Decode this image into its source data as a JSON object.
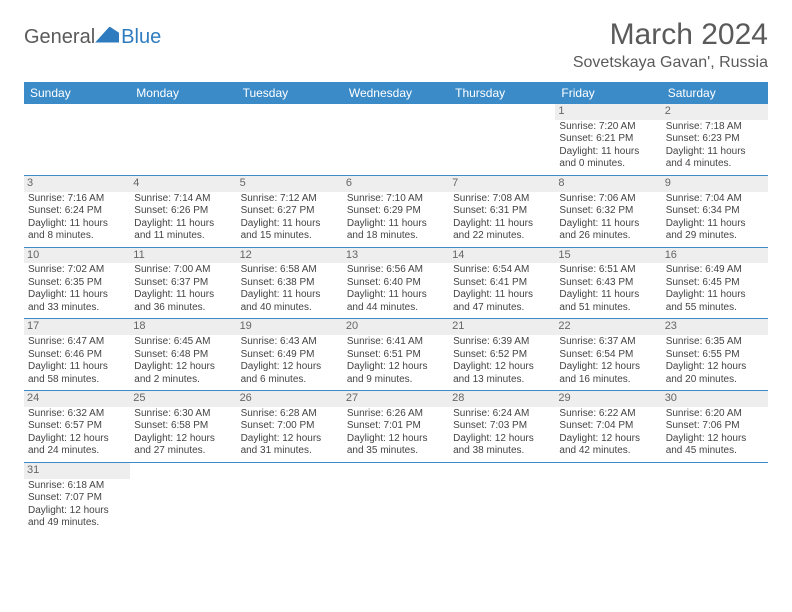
{
  "logo": {
    "text1": "General",
    "text2": "Blue"
  },
  "header": {
    "month_title": "March 2024",
    "location": "Sovetskaya Gavan', Russia"
  },
  "style": {
    "header_bg": "#3b8bc8",
    "header_fg": "#ffffff",
    "daynum_bg": "#eeeeee",
    "row_sep": "#3b8bc8",
    "text_color": "#444444",
    "cell_fontsize": 10,
    "header_fontsize": 12,
    "title_fontsize": 30,
    "location_fontsize": 16
  },
  "weekdays": [
    "Sunday",
    "Monday",
    "Tuesday",
    "Wednesday",
    "Thursday",
    "Friday",
    "Saturday"
  ],
  "weeks": [
    [
      {
        "empty": true
      },
      {
        "empty": true
      },
      {
        "empty": true
      },
      {
        "empty": true
      },
      {
        "empty": true
      },
      {
        "day": "1",
        "sunrise": "Sunrise: 7:20 AM",
        "sunset": "Sunset: 6:21 PM",
        "daylight": "Daylight: 11 hours and 0 minutes."
      },
      {
        "day": "2",
        "sunrise": "Sunrise: 7:18 AM",
        "sunset": "Sunset: 6:23 PM",
        "daylight": "Daylight: 11 hours and 4 minutes."
      }
    ],
    [
      {
        "day": "3",
        "sunrise": "Sunrise: 7:16 AM",
        "sunset": "Sunset: 6:24 PM",
        "daylight": "Daylight: 11 hours and 8 minutes."
      },
      {
        "day": "4",
        "sunrise": "Sunrise: 7:14 AM",
        "sunset": "Sunset: 6:26 PM",
        "daylight": "Daylight: 11 hours and 11 minutes."
      },
      {
        "day": "5",
        "sunrise": "Sunrise: 7:12 AM",
        "sunset": "Sunset: 6:27 PM",
        "daylight": "Daylight: 11 hours and 15 minutes."
      },
      {
        "day": "6",
        "sunrise": "Sunrise: 7:10 AM",
        "sunset": "Sunset: 6:29 PM",
        "daylight": "Daylight: 11 hours and 18 minutes."
      },
      {
        "day": "7",
        "sunrise": "Sunrise: 7:08 AM",
        "sunset": "Sunset: 6:31 PM",
        "daylight": "Daylight: 11 hours and 22 minutes."
      },
      {
        "day": "8",
        "sunrise": "Sunrise: 7:06 AM",
        "sunset": "Sunset: 6:32 PM",
        "daylight": "Daylight: 11 hours and 26 minutes."
      },
      {
        "day": "9",
        "sunrise": "Sunrise: 7:04 AM",
        "sunset": "Sunset: 6:34 PM",
        "daylight": "Daylight: 11 hours and 29 minutes."
      }
    ],
    [
      {
        "day": "10",
        "sunrise": "Sunrise: 7:02 AM",
        "sunset": "Sunset: 6:35 PM",
        "daylight": "Daylight: 11 hours and 33 minutes."
      },
      {
        "day": "11",
        "sunrise": "Sunrise: 7:00 AM",
        "sunset": "Sunset: 6:37 PM",
        "daylight": "Daylight: 11 hours and 36 minutes."
      },
      {
        "day": "12",
        "sunrise": "Sunrise: 6:58 AM",
        "sunset": "Sunset: 6:38 PM",
        "daylight": "Daylight: 11 hours and 40 minutes."
      },
      {
        "day": "13",
        "sunrise": "Sunrise: 6:56 AM",
        "sunset": "Sunset: 6:40 PM",
        "daylight": "Daylight: 11 hours and 44 minutes."
      },
      {
        "day": "14",
        "sunrise": "Sunrise: 6:54 AM",
        "sunset": "Sunset: 6:41 PM",
        "daylight": "Daylight: 11 hours and 47 minutes."
      },
      {
        "day": "15",
        "sunrise": "Sunrise: 6:51 AM",
        "sunset": "Sunset: 6:43 PM",
        "daylight": "Daylight: 11 hours and 51 minutes."
      },
      {
        "day": "16",
        "sunrise": "Sunrise: 6:49 AM",
        "sunset": "Sunset: 6:45 PM",
        "daylight": "Daylight: 11 hours and 55 minutes."
      }
    ],
    [
      {
        "day": "17",
        "sunrise": "Sunrise: 6:47 AM",
        "sunset": "Sunset: 6:46 PM",
        "daylight": "Daylight: 11 hours and 58 minutes."
      },
      {
        "day": "18",
        "sunrise": "Sunrise: 6:45 AM",
        "sunset": "Sunset: 6:48 PM",
        "daylight": "Daylight: 12 hours and 2 minutes."
      },
      {
        "day": "19",
        "sunrise": "Sunrise: 6:43 AM",
        "sunset": "Sunset: 6:49 PM",
        "daylight": "Daylight: 12 hours and 6 minutes."
      },
      {
        "day": "20",
        "sunrise": "Sunrise: 6:41 AM",
        "sunset": "Sunset: 6:51 PM",
        "daylight": "Daylight: 12 hours and 9 minutes."
      },
      {
        "day": "21",
        "sunrise": "Sunrise: 6:39 AM",
        "sunset": "Sunset: 6:52 PM",
        "daylight": "Daylight: 12 hours and 13 minutes."
      },
      {
        "day": "22",
        "sunrise": "Sunrise: 6:37 AM",
        "sunset": "Sunset: 6:54 PM",
        "daylight": "Daylight: 12 hours and 16 minutes."
      },
      {
        "day": "23",
        "sunrise": "Sunrise: 6:35 AM",
        "sunset": "Sunset: 6:55 PM",
        "daylight": "Daylight: 12 hours and 20 minutes."
      }
    ],
    [
      {
        "day": "24",
        "sunrise": "Sunrise: 6:32 AM",
        "sunset": "Sunset: 6:57 PM",
        "daylight": "Daylight: 12 hours and 24 minutes."
      },
      {
        "day": "25",
        "sunrise": "Sunrise: 6:30 AM",
        "sunset": "Sunset: 6:58 PM",
        "daylight": "Daylight: 12 hours and 27 minutes."
      },
      {
        "day": "26",
        "sunrise": "Sunrise: 6:28 AM",
        "sunset": "Sunset: 7:00 PM",
        "daylight": "Daylight: 12 hours and 31 minutes."
      },
      {
        "day": "27",
        "sunrise": "Sunrise: 6:26 AM",
        "sunset": "Sunset: 7:01 PM",
        "daylight": "Daylight: 12 hours and 35 minutes."
      },
      {
        "day": "28",
        "sunrise": "Sunrise: 6:24 AM",
        "sunset": "Sunset: 7:03 PM",
        "daylight": "Daylight: 12 hours and 38 minutes."
      },
      {
        "day": "29",
        "sunrise": "Sunrise: 6:22 AM",
        "sunset": "Sunset: 7:04 PM",
        "daylight": "Daylight: 12 hours and 42 minutes."
      },
      {
        "day": "30",
        "sunrise": "Sunrise: 6:20 AM",
        "sunset": "Sunset: 7:06 PM",
        "daylight": "Daylight: 12 hours and 45 minutes."
      }
    ],
    [
      {
        "day": "31",
        "sunrise": "Sunrise: 6:18 AM",
        "sunset": "Sunset: 7:07 PM",
        "daylight": "Daylight: 12 hours and 49 minutes."
      },
      {
        "empty": true
      },
      {
        "empty": true
      },
      {
        "empty": true
      },
      {
        "empty": true
      },
      {
        "empty": true
      },
      {
        "empty": true
      }
    ]
  ]
}
